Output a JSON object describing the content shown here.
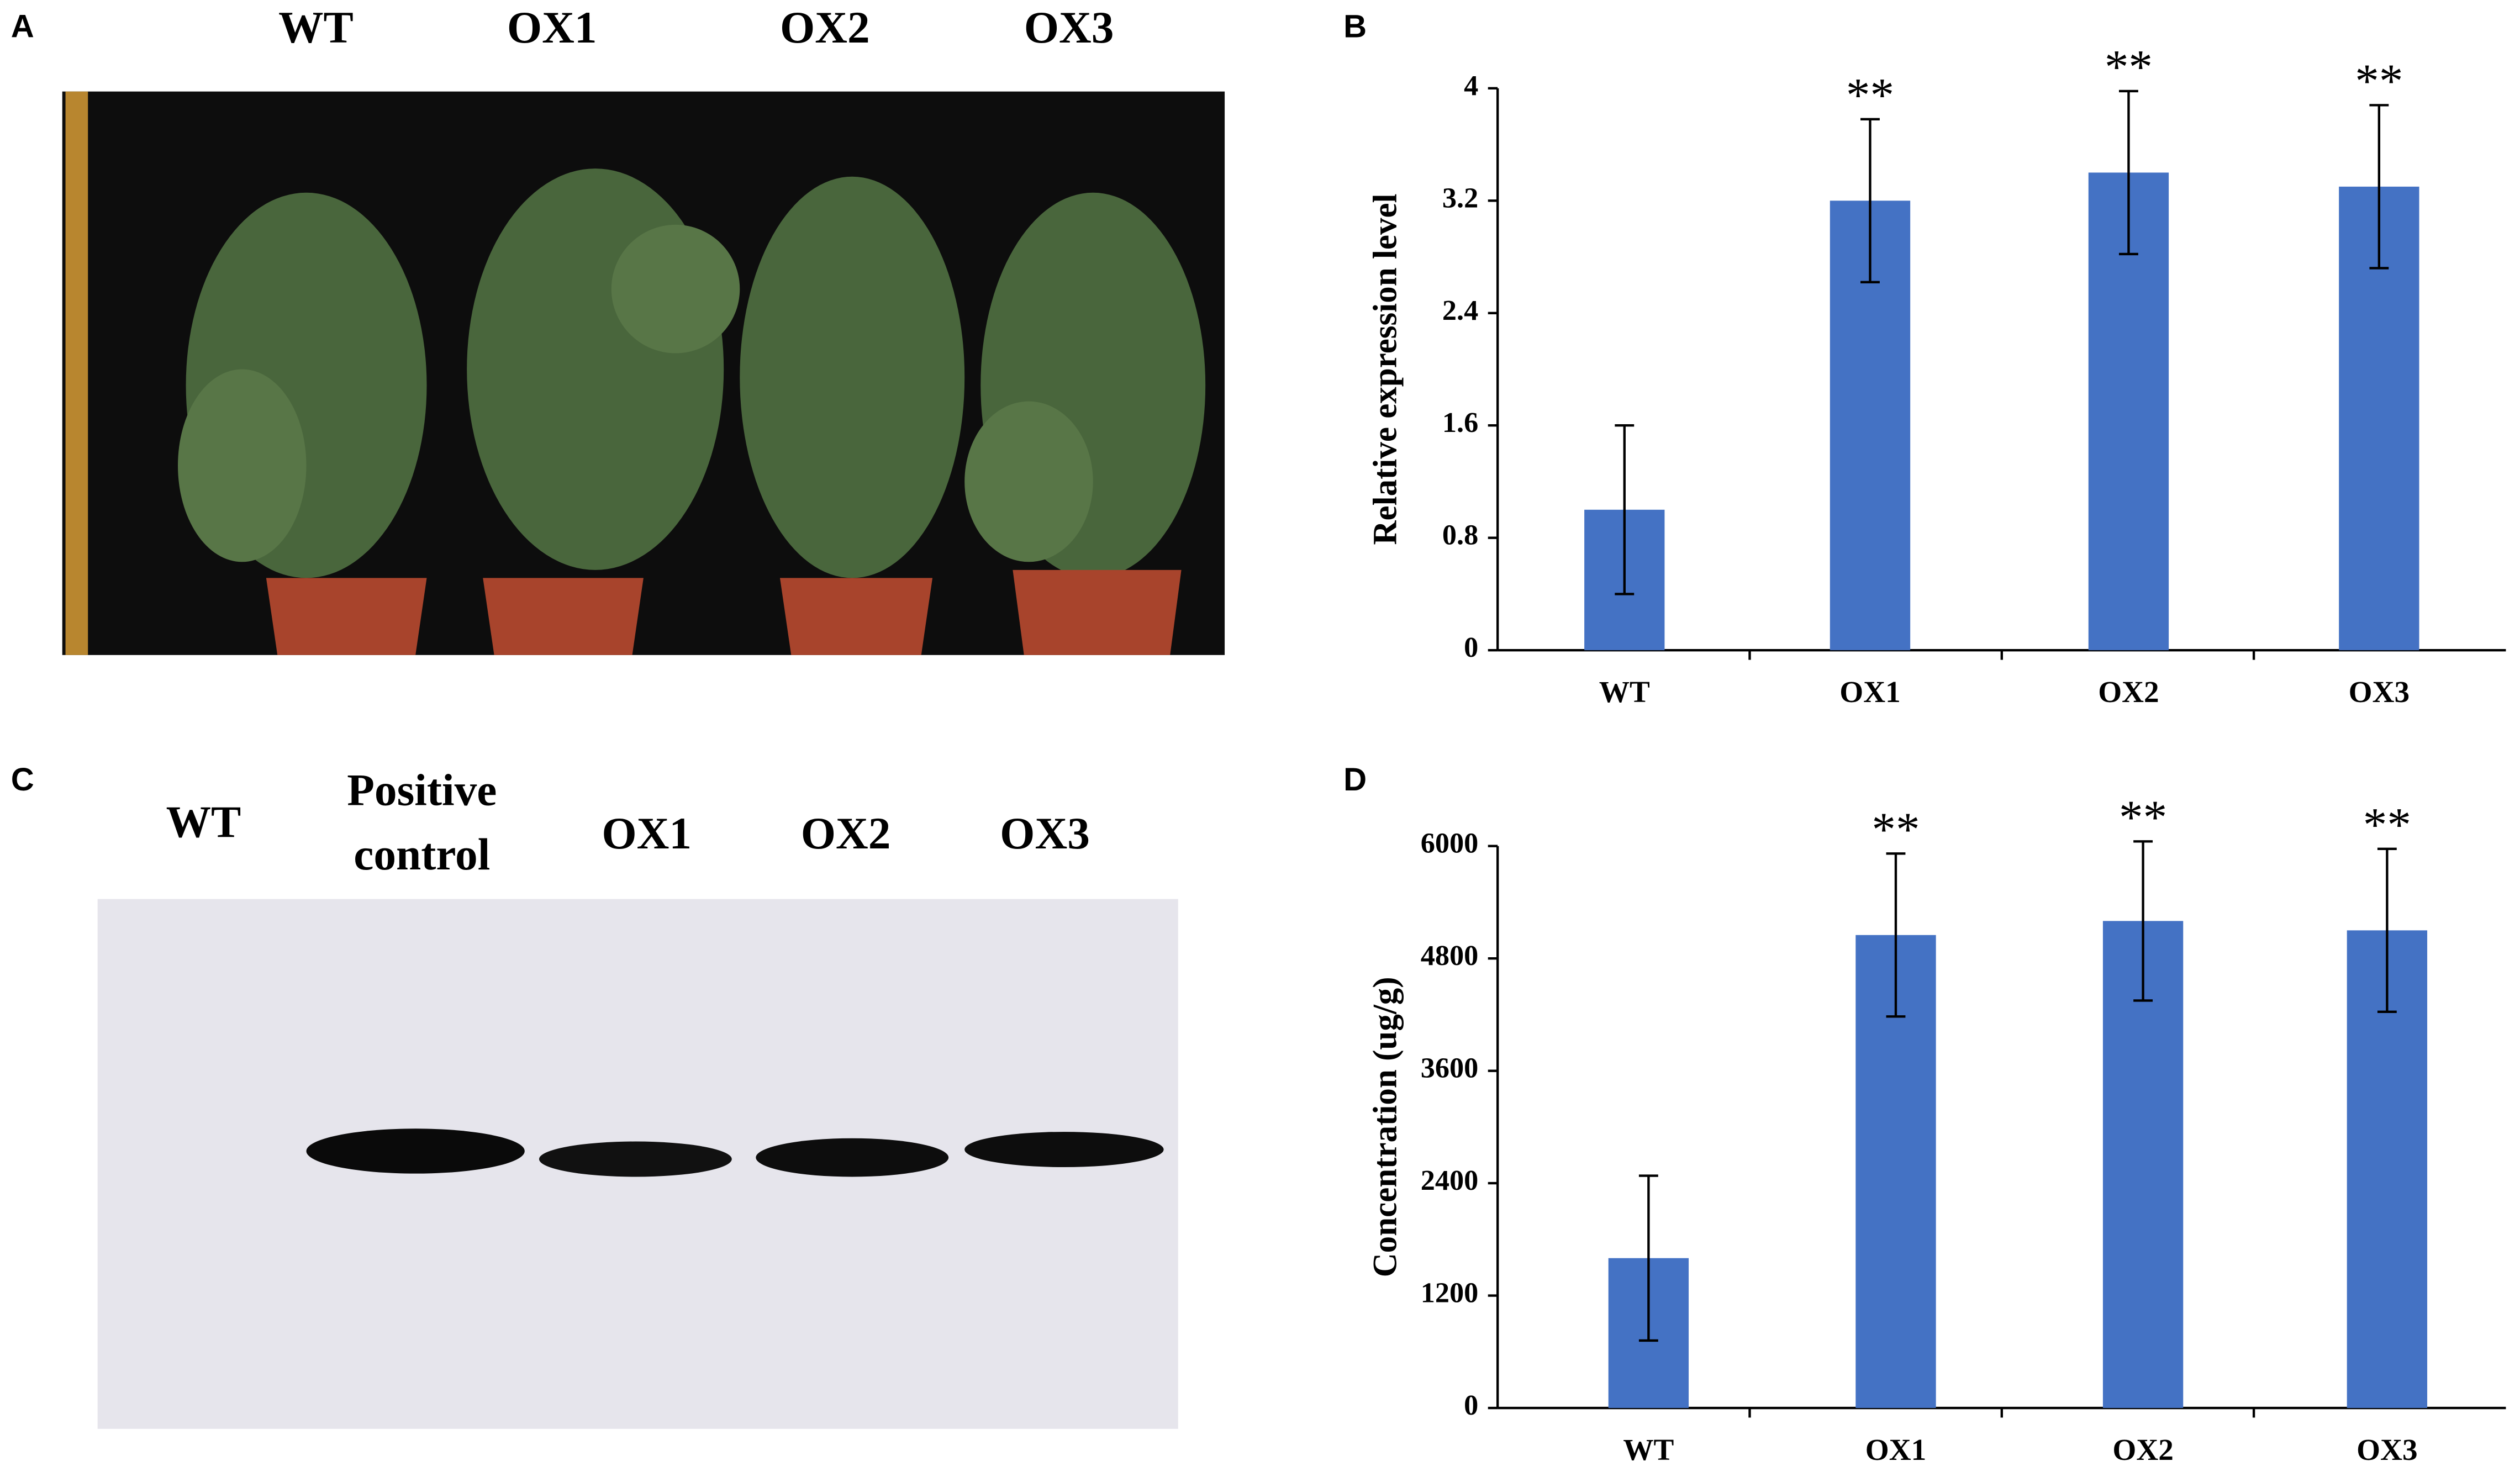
{
  "panels": {
    "A": {
      "letter": "A",
      "labels": [
        "WT",
        "OX1",
        "OX2",
        "OX3"
      ]
    },
    "C": {
      "letter": "C",
      "labels": [
        "WT",
        "Positive control",
        "OX1",
        "OX2",
        "OX3"
      ]
    }
  },
  "chart_data": [
    {
      "type": "bar",
      "letter": "B",
      "ylabel": "Relative expression level",
      "categories": [
        "WT",
        "OX1",
        "OX2",
        "OX3"
      ],
      "values": [
        1.0,
        3.2,
        3.4,
        3.3
      ],
      "errors": [
        0.6,
        0.58,
        0.58,
        0.58
      ],
      "annotations": [
        null,
        "**",
        "**",
        "**"
      ],
      "color": "#4472c4",
      "ylim": [
        0,
        4
      ],
      "yticks": [
        0,
        0.8,
        1.6,
        2.4,
        3.2,
        4
      ]
    },
    {
      "type": "bar",
      "letter": "D",
      "ylabel": "Concentration (ug/g)",
      "categories": [
        "WT",
        "OX1",
        "OX2",
        "OX3"
      ],
      "values": [
        1600,
        5050,
        5200,
        5100
      ],
      "errors": [
        880,
        870,
        850,
        870
      ],
      "annotations": [
        null,
        "**",
        "**",
        "**"
      ],
      "color": "#4472c4",
      "ylim": [
        0,
        6000
      ],
      "yticks": [
        0,
        1200,
        2400,
        3600,
        4800,
        6000
      ]
    }
  ]
}
